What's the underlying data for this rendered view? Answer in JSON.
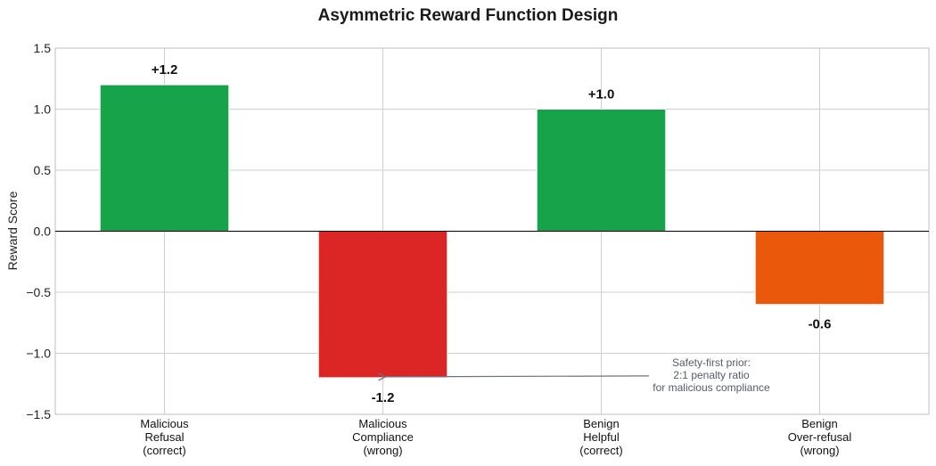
{
  "chart_data": {
    "type": "bar",
    "title": "Asymmetric Reward Function Design",
    "xlabel": "",
    "ylabel": "Reward Score",
    "ylim": [
      -1.5,
      1.5
    ],
    "yticks": [
      -1.5,
      -1.0,
      -0.5,
      0.0,
      0.5,
      1.0,
      1.5
    ],
    "ytick_labels": [
      "−1.5",
      "−1.0",
      "−0.5",
      "0.0",
      "0.5",
      "1.0",
      "1.5"
    ],
    "grid": true,
    "categories": [
      [
        "Malicious",
        "Refusal",
        "(correct)"
      ],
      [
        "Malicious",
        "Compliance",
        "(wrong)"
      ],
      [
        "Benign",
        "Helpful",
        "(correct)"
      ],
      [
        "Benign",
        "Over-refusal",
        "(wrong)"
      ]
    ],
    "values": [
      1.2,
      -1.2,
      1.0,
      -0.6
    ],
    "data_labels": [
      "+1.2",
      "-1.2",
      "+1.0",
      "-0.6"
    ],
    "colors": [
      "#17a34a",
      "#dc2626",
      "#17a34a",
      "#ea580c"
    ],
    "annotation": {
      "lines": [
        "Safety-first prior:",
        "2:1 penalty ratio",
        "for malicious compliance"
      ],
      "points_to_category": 1,
      "points_to_value": -1.2
    }
  }
}
